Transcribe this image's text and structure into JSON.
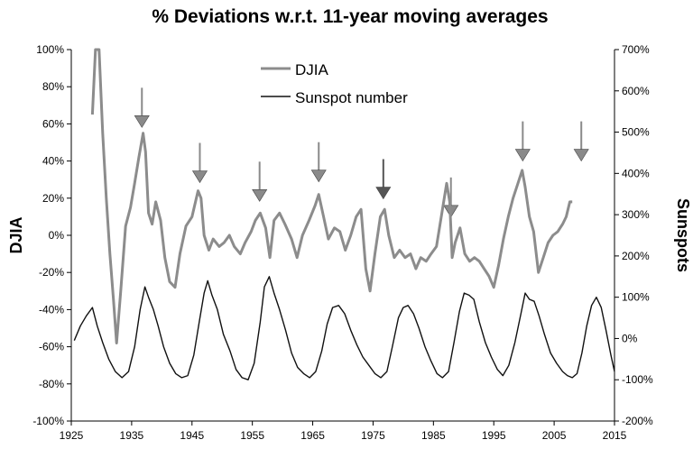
{
  "chart_data": {
    "type": "line",
    "title": "% Deviations w.r.t. 11-year moving averages",
    "xlabel": "",
    "ylabel": "DJIA",
    "ylabel_right": "Sunspots",
    "xlim": [
      1925,
      2015
    ],
    "ylim": [
      -100,
      100
    ],
    "ylim_right": [
      -200,
      700
    ],
    "x_ticks": [
      1925,
      1935,
      1945,
      1955,
      1965,
      1975,
      1985,
      1995,
      2005,
      2015
    ],
    "y_ticks": [
      -100,
      -80,
      -60,
      -40,
      -20,
      0,
      20,
      40,
      60,
      80,
      100
    ],
    "y_ticks_right": [
      -200,
      -100,
      0,
      100,
      200,
      300,
      400,
      500,
      600,
      700
    ],
    "x_tick_labels": [
      "1925",
      "1935",
      "1945",
      "1955",
      "1965",
      "1975",
      "1985",
      "1995",
      "2005",
      "2015"
    ],
    "y_tick_labels": [
      "-100%",
      "-80%",
      "-60%",
      "-40%",
      "-20%",
      "0%",
      "20%",
      "40%",
      "60%",
      "80%",
      "100%"
    ],
    "y_tick_labels_right": [
      "-200%",
      "-100%",
      "0%",
      "100%",
      "200%",
      "300%",
      "400%",
      "500%",
      "600%",
      "700%"
    ],
    "legend": [
      "DJIA",
      "Sunspot number"
    ],
    "legend_position": "top-center",
    "series": [
      {
        "name": "DJIA",
        "axis": "left",
        "color": "#8c8c8c",
        "x": [
          1928.5,
          1929.0,
          1929.6,
          1930.2,
          1930.8,
          1931.4,
          1932.0,
          1932.5,
          1933.2,
          1934.0,
          1934.8,
          1935.5,
          1936.2,
          1936.9,
          1937.3,
          1937.8,
          1938.4,
          1939.0,
          1939.8,
          1940.5,
          1941.3,
          1942.2,
          1943.0,
          1944.0,
          1945.0,
          1946.0,
          1946.5,
          1947.0,
          1947.8,
          1948.5,
          1949.5,
          1950.3,
          1951.2,
          1952.0,
          1953.0,
          1953.8,
          1954.8,
          1955.5,
          1956.3,
          1957.2,
          1957.9,
          1958.6,
          1959.5,
          1960.4,
          1961.5,
          1962.4,
          1963.3,
          1964.4,
          1965.4,
          1966.0,
          1966.8,
          1967.6,
          1968.6,
          1969.5,
          1970.4,
          1971.3,
          1972.2,
          1973.0,
          1973.8,
          1974.5,
          1975.3,
          1976.2,
          1976.9,
          1977.6,
          1978.5,
          1979.4,
          1980.3,
          1981.2,
          1982.1,
          1982.9,
          1983.8,
          1984.6,
          1985.5,
          1986.4,
          1987.2,
          1987.7,
          1988.1,
          1988.6,
          1989.4,
          1990.2,
          1991.0,
          1991.8,
          1992.6,
          1993.4,
          1994.2,
          1995.0,
          1995.8,
          1996.6,
          1997.4,
          1998.2,
          1999.0,
          1999.7,
          2000.2,
          2000.9,
          2001.6,
          2002.4,
          2003.2,
          2004.0,
          2004.8,
          2005.6,
          2006.4,
          2007.0,
          2007.6,
          2008.0
        ],
        "values": [
          65,
          100,
          100,
          55,
          20,
          -10,
          -35,
          -58,
          -30,
          5,
          15,
          28,
          42,
          55,
          45,
          12,
          6,
          18,
          8,
          -12,
          -25,
          -28,
          -10,
          5,
          10,
          24,
          20,
          0,
          -8,
          -2,
          -6,
          -4,
          0,
          -6,
          -10,
          -4,
          2,
          8,
          12,
          4,
          -12,
          8,
          12,
          6,
          -2,
          -12,
          0,
          8,
          16,
          22,
          10,
          -2,
          4,
          2,
          -8,
          0,
          10,
          14,
          -18,
          -30,
          -10,
          10,
          14,
          0,
          -12,
          -8,
          -12,
          -10,
          -18,
          -12,
          -14,
          -10,
          -6,
          12,
          28,
          18,
          -12,
          -4,
          4,
          -10,
          -14,
          -12,
          -14,
          -18,
          -22,
          -28,
          -16,
          -2,
          10,
          20,
          28,
          35,
          26,
          10,
          2,
          -20,
          -12,
          -4,
          0,
          2,
          6,
          10,
          18,
          18
        ]
      },
      {
        "name": "Sunspot number",
        "axis": "right",
        "color": "#111111",
        "x": [
          1925.5,
          1926.5,
          1927.5,
          1928.5,
          1929.3,
          1930.2,
          1931.2,
          1932.3,
          1933.4,
          1934.5,
          1935.5,
          1936.4,
          1937.2,
          1937.8,
          1938.6,
          1939.4,
          1940.3,
          1941.3,
          1942.3,
          1943.3,
          1944.3,
          1945.3,
          1946.2,
          1947.0,
          1947.6,
          1948.3,
          1949.2,
          1950.2,
          1951.3,
          1952.3,
          1953.3,
          1954.3,
          1955.3,
          1956.3,
          1957.0,
          1957.8,
          1958.6,
          1959.5,
          1960.5,
          1961.5,
          1962.5,
          1963.5,
          1964.5,
          1965.5,
          1966.5,
          1967.4,
          1968.3,
          1969.3,
          1970.3,
          1971.3,
          1972.3,
          1973.3,
          1974.3,
          1975.3,
          1976.3,
          1977.3,
          1978.2,
          1979.2,
          1980.0,
          1980.8,
          1981.7,
          1982.6,
          1983.6,
          1984.6,
          1985.6,
          1986.5,
          1987.5,
          1988.4,
          1989.3,
          1990.1,
          1990.9,
          1991.7,
          1992.6,
          1993.6,
          1994.6,
          1995.6,
          1996.5,
          1997.5,
          1998.5,
          1999.5,
          2000.2,
          2000.9,
          2001.7,
          2002.5,
          2003.4,
          2004.4,
          2005.4,
          2006.4,
          2007.2,
          2008.0,
          2008.8,
          2009.6,
          2010.4,
          2011.2,
          2012.0,
          2012.8,
          2013.6,
          2014.4,
          2015.0
        ],
        "values": [
          -5,
          30,
          55,
          75,
          30,
          -10,
          -50,
          -80,
          -95,
          -80,
          -20,
          70,
          125,
          100,
          70,
          30,
          -20,
          -60,
          -85,
          -95,
          -90,
          -40,
          40,
          110,
          140,
          105,
          70,
          10,
          -30,
          -75,
          -95,
          -100,
          -60,
          40,
          125,
          150,
          110,
          70,
          20,
          -35,
          -70,
          -85,
          -95,
          -80,
          -30,
          35,
          75,
          80,
          60,
          20,
          -15,
          -45,
          -65,
          -85,
          -95,
          -80,
          -20,
          50,
          75,
          80,
          60,
          25,
          -20,
          -55,
          -85,
          -95,
          -80,
          -10,
          65,
          110,
          105,
          95,
          40,
          -10,
          -45,
          -75,
          -90,
          -65,
          -10,
          60,
          110,
          95,
          90,
          55,
          10,
          -35,
          -60,
          -80,
          -90,
          -95,
          -85,
          -35,
          30,
          80,
          100,
          75,
          20,
          -40,
          -80
        ]
      }
    ],
    "arrows_x": [
      1936.7,
      1946.3,
      1956.2,
      1966.0,
      1976.7,
      1987.9,
      1999.8,
      2009.5
    ]
  }
}
